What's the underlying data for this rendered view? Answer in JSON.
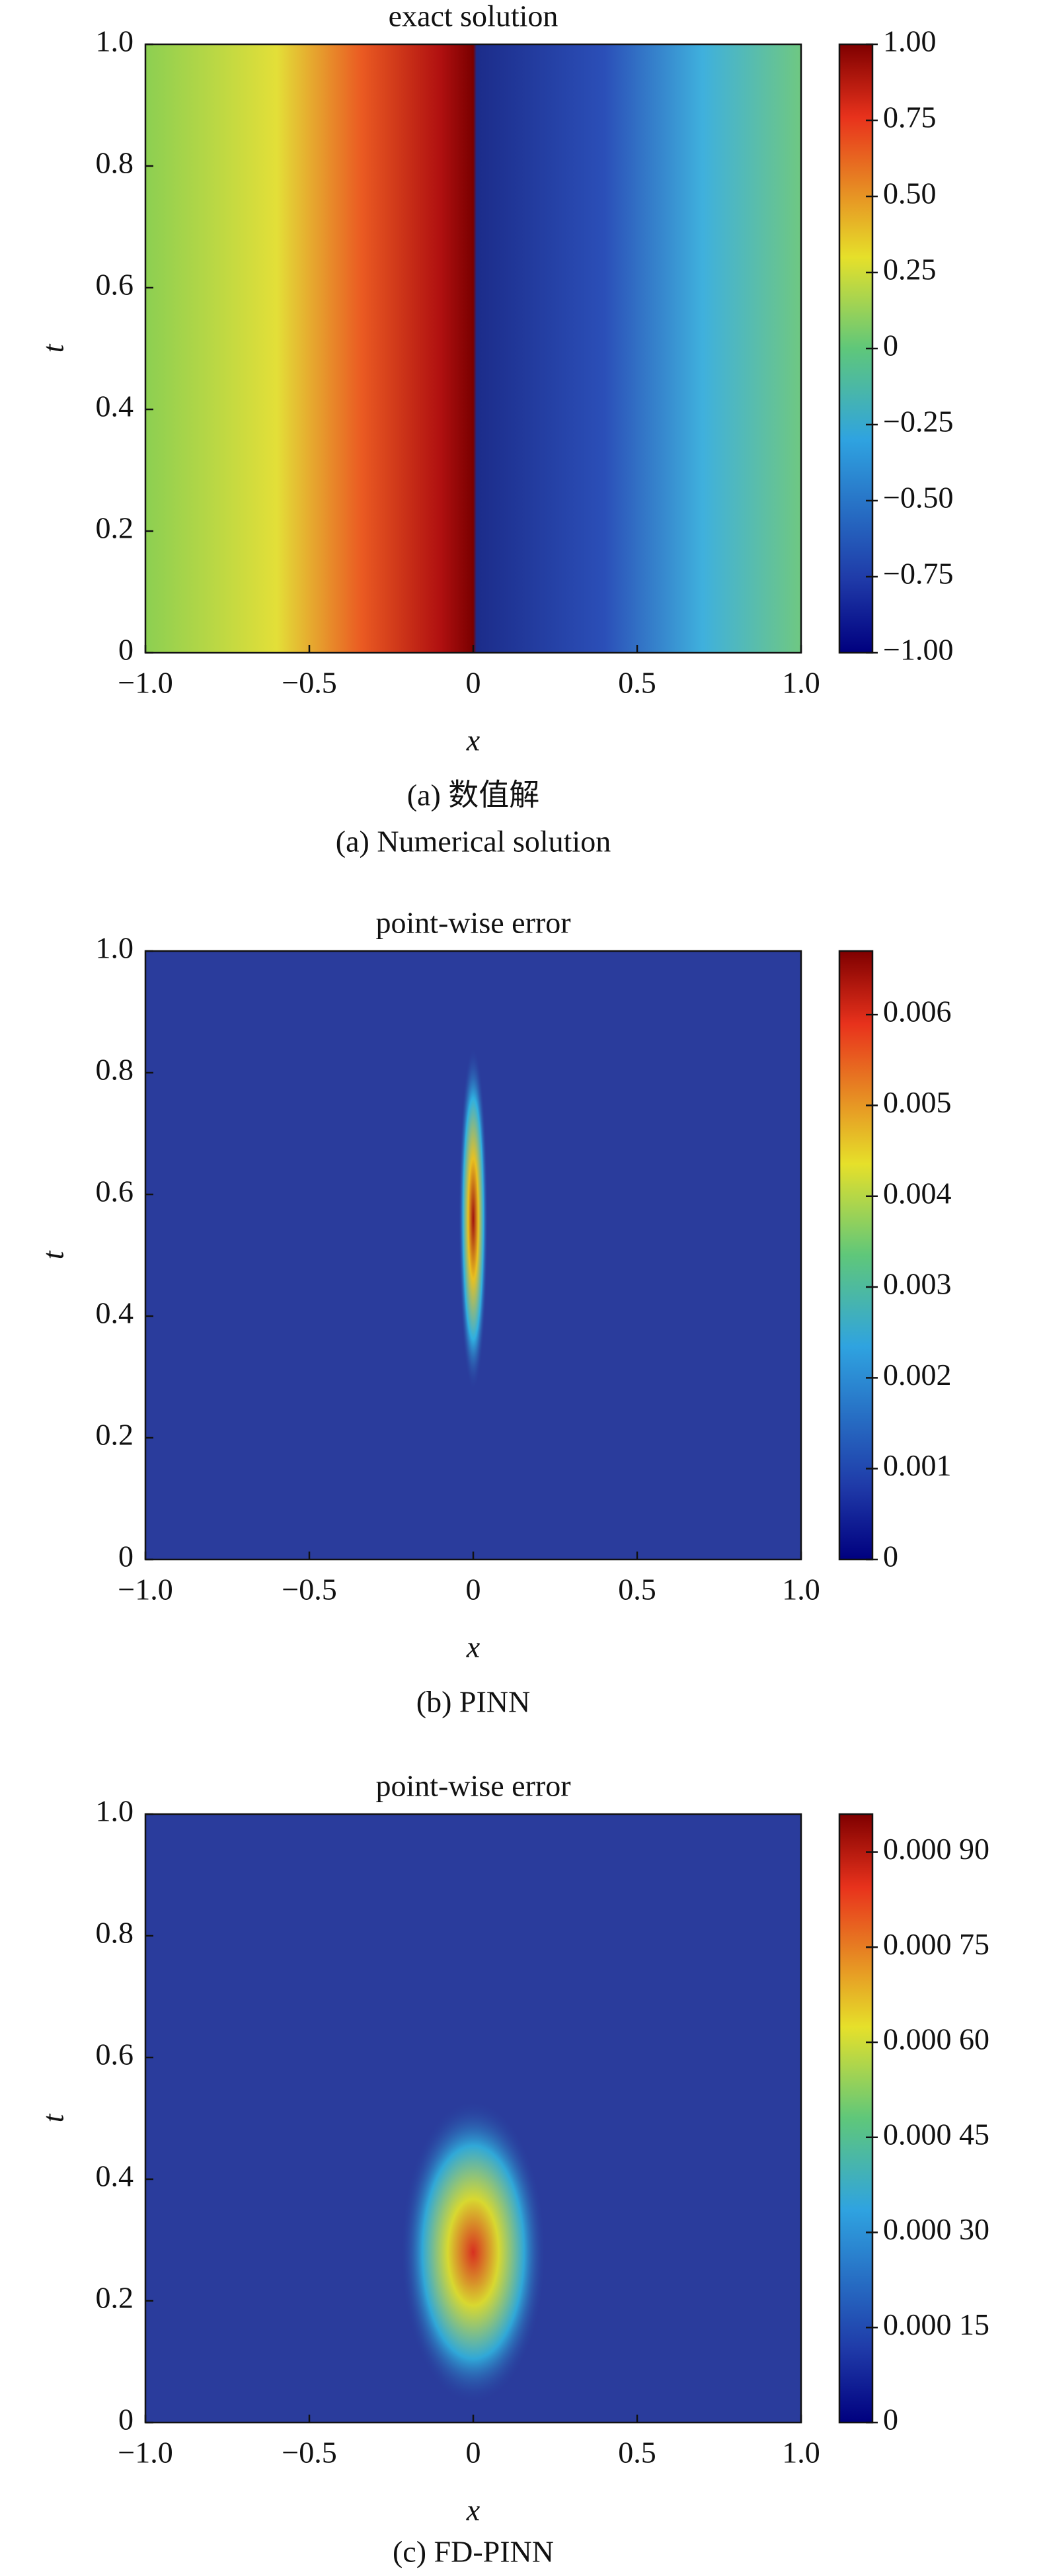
{
  "chart_data": [
    {
      "type": "heatmap",
      "title": "exact solution",
      "xlabel": "x",
      "ylabel": "t",
      "caption": [
        "(a) 数值解",
        "(a) Numerical solution"
      ],
      "xlim": [
        -1,
        1
      ],
      "ylim": [
        0,
        1
      ],
      "xticks": [
        {
          "value": -1,
          "label": "−1.0"
        },
        {
          "value": -0.5,
          "label": "−0.5"
        },
        0,
        0.5,
        {
          "value": 1,
          "label": "1.0"
        }
      ],
      "yticks": [
        0,
        0.2,
        0.4,
        0.6,
        0.8,
        {
          "value": 1,
          "label": "1.0"
        }
      ],
      "clim": [
        -1,
        1
      ],
      "cticks": [
        {
          "value": -1,
          "label": "−1.00"
        },
        {
          "value": -0.75,
          "label": "−0.75"
        },
        {
          "value": -0.5,
          "label": "−0.50"
        },
        {
          "value": -0.25,
          "label": "−0.25"
        },
        0,
        0.25,
        {
          "value": 0.5,
          "label": "0.50"
        },
        0.75,
        {
          "value": 1,
          "label": "1.00"
        }
      ]
    },
    {
      "type": "heatmap",
      "title": "point-wise error",
      "xlabel": "x",
      "ylabel": "t",
      "caption": [
        "(b) PINN"
      ],
      "xlim": [
        -1,
        1
      ],
      "ylim": [
        0,
        1
      ],
      "xticks": [
        {
          "value": -1,
          "label": "−1.0"
        },
        {
          "value": -0.5,
          "label": "−0.5"
        },
        0,
        0.5,
        {
          "value": 1,
          "label": "1.0"
        }
      ],
      "yticks": [
        0,
        0.2,
        0.4,
        0.6,
        0.8,
        {
          "value": 1,
          "label": "1.0"
        }
      ],
      "clim": [
        0,
        0.0067
      ],
      "cticks": [
        0,
        0.001,
        0.002,
        0.003,
        0.004,
        0.005,
        0.006
      ]
    },
    {
      "type": "heatmap",
      "title": "point-wise error",
      "xlabel": "x",
      "ylabel": "t",
      "caption": [
        "(c) FD-PINN"
      ],
      "xlim": [
        -1,
        1
      ],
      "ylim": [
        0,
        1
      ],
      "xticks": [
        {
          "value": -1,
          "label": "−1.0"
        },
        {
          "value": -0.5,
          "label": "−0.5"
        },
        0,
        0.5,
        {
          "value": 1,
          "label": "1.0"
        }
      ],
      "yticks": [
        0,
        0.2,
        0.4,
        0.6,
        0.8,
        {
          "value": 1,
          "label": "1.0"
        }
      ],
      "clim": [
        0,
        0.00096
      ],
      "cticks": [
        0,
        {
          "value": 0.00015,
          "label": "0.000 15"
        },
        {
          "value": 0.0003,
          "label": "0.000 30"
        },
        {
          "value": 0.00045,
          "label": "0.000 45"
        },
        {
          "value": 0.0006,
          "label": "0.000 60"
        },
        {
          "value": 0.00075,
          "label": "0.000 75"
        },
        {
          "value": 0.0009,
          "label": "0.000 90"
        }
      ]
    }
  ]
}
